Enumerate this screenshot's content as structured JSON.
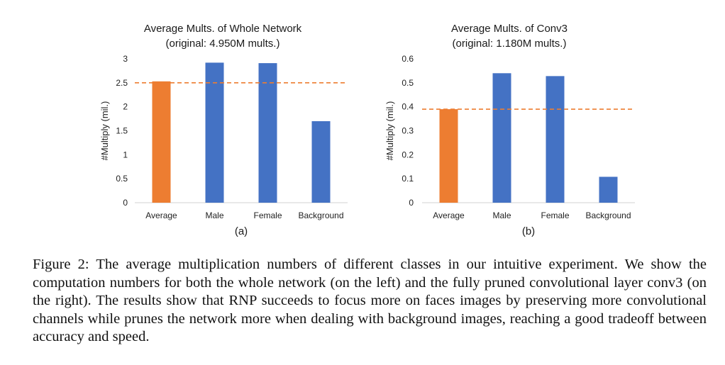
{
  "chart_data": [
    {
      "type": "bar",
      "title": "Average Mults. of Whole Network",
      "subtitle": "(original: 4.950M mults.)",
      "ylabel": "#Multiply (mil.)",
      "xlabel": "",
      "panel_label": "(a)",
      "categories": [
        "Average",
        "Male",
        "Female",
        "Background"
      ],
      "values": [
        2.53,
        2.92,
        2.91,
        1.7
      ],
      "colors": [
        "#ED7D31",
        "#4472C4",
        "#4472C4",
        "#4472C4"
      ],
      "ylim": [
        0,
        3
      ],
      "yticks": [
        "0",
        "0.5",
        "1",
        "1.5",
        "2",
        "2.5",
        "3"
      ],
      "ytick_values": [
        0,
        0.5,
        1,
        1.5,
        2,
        2.5,
        3
      ],
      "reference_line": {
        "value": 2.5,
        "style": "dashed",
        "color": "#ED7D31"
      },
      "grid": false
    },
    {
      "type": "bar",
      "title": "Average Mults. of Conv3",
      "subtitle": "(original: 1.180M mults.)",
      "ylabel": "#Multiply (mil.)",
      "xlabel": "",
      "panel_label": "(b)",
      "categories": [
        "Average",
        "Male",
        "Female",
        "Background"
      ],
      "values": [
        0.39,
        0.54,
        0.528,
        0.108
      ],
      "colors": [
        "#ED7D31",
        "#4472C4",
        "#4472C4",
        "#4472C4"
      ],
      "ylim": [
        0,
        0.6
      ],
      "yticks": [
        "0",
        "0.1",
        "0.2",
        "0.3",
        "0.4",
        "0.5",
        "0.6"
      ],
      "ytick_values": [
        0,
        0.1,
        0.2,
        0.3,
        0.4,
        0.5,
        0.6
      ],
      "reference_line": {
        "value": 0.39,
        "style": "dashed",
        "color": "#ED7D31"
      },
      "grid": false
    }
  ],
  "caption": "Figure 2: The average multiplication numbers of different classes in our intuitive experiment. We show the computation numbers for both the whole network (on the left) and the fully pruned convolutional layer conv3 (on the right). The results show that RNP succeeds to focus more on faces images by preserving more convolutional channels while prunes the network more when dealing with background images, reaching a good tradeoff between accuracy and speed."
}
